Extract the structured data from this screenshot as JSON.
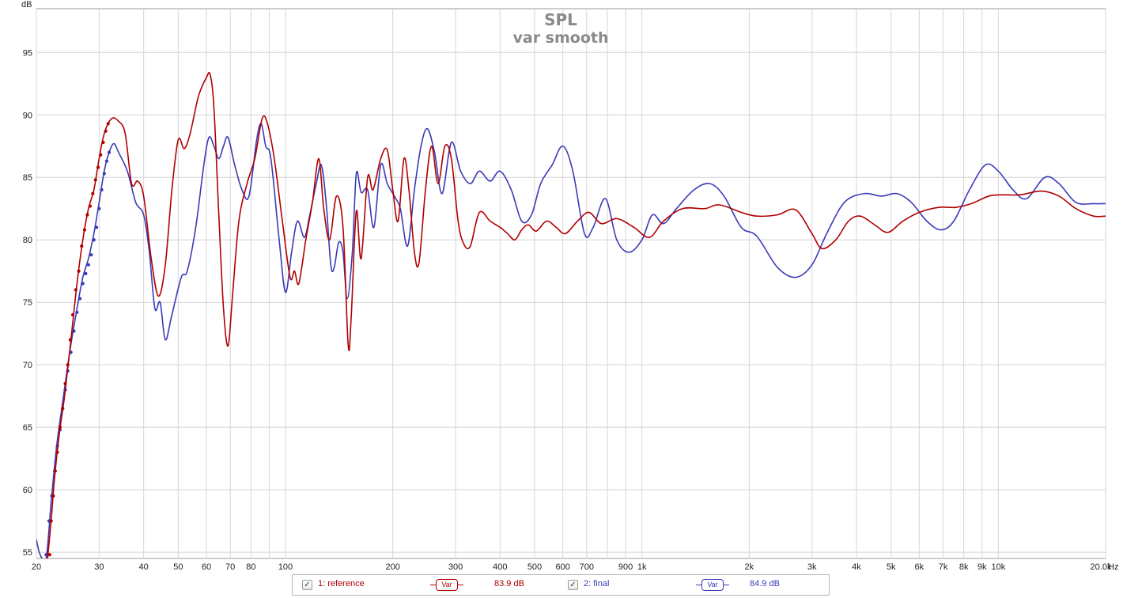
{
  "chart_data": {
    "type": "line",
    "title": "SPL",
    "subtitle": "var smooth",
    "ylabel": "dB",
    "xlabel": "Hz",
    "x_scale": "log",
    "xlim": [
      20,
      20000
    ],
    "ylim": [
      54.5,
      98.5
    ],
    "y_ticks": [
      55,
      60,
      65,
      70,
      75,
      80,
      85,
      90,
      95
    ],
    "x_ticks": [
      {
        "v": 20,
        "label": "20"
      },
      {
        "v": 30,
        "label": "30"
      },
      {
        "v": 40,
        "label": "40"
      },
      {
        "v": 50,
        "label": "50"
      },
      {
        "v": 60,
        "label": "60"
      },
      {
        "v": 70,
        "label": "70"
      },
      {
        "v": 80,
        "label": "80"
      },
      {
        "v": 100,
        "label": "100"
      },
      {
        "v": 200,
        "label": "200"
      },
      {
        "v": 300,
        "label": "300"
      },
      {
        "v": 400,
        "label": "400"
      },
      {
        "v": 500,
        "label": "500"
      },
      {
        "v": 600,
        "label": "600"
      },
      {
        "v": 700,
        "label": "700"
      },
      {
        "v": 900,
        "label": "900"
      },
      {
        "v": 1000,
        "label": "1k"
      },
      {
        "v": 2000,
        "label": "2k"
      },
      {
        "v": 3000,
        "label": "3k"
      },
      {
        "v": 4000,
        "label": "4k"
      },
      {
        "v": 5000,
        "label": "5k"
      },
      {
        "v": 6000,
        "label": "6k"
      },
      {
        "v": 7000,
        "label": "7k"
      },
      {
        "v": 8000,
        "label": "8k"
      },
      {
        "v": 9000,
        "label": "9k"
      },
      {
        "v": 10000,
        "label": "10k"
      },
      {
        "v": 20000,
        "label": "20.0k"
      }
    ],
    "grid": true,
    "series": [
      {
        "name": "1: reference",
        "color": "#b00000",
        "smoothing": "Var",
        "level": "83.9 dB",
        "points": [
          [
            21.5,
            54.5
          ],
          [
            22.0,
            57.5
          ],
          [
            22.5,
            61.0
          ],
          [
            23.2,
            64.5
          ],
          [
            24.0,
            67.5
          ],
          [
            25.0,
            72.0
          ],
          [
            26.0,
            76.5
          ],
          [
            27.0,
            80.0
          ],
          [
            28.0,
            82.5
          ],
          [
            29.0,
            84.0
          ],
          [
            30.0,
            86.5
          ],
          [
            31.0,
            88.5
          ],
          [
            32.5,
            89.7
          ],
          [
            34.0,
            89.5
          ],
          [
            35.5,
            88.5
          ],
          [
            37.0,
            84.5
          ],
          [
            38.5,
            84.7
          ],
          [
            40.0,
            83.5
          ],
          [
            42.0,
            78.5
          ],
          [
            44.0,
            75.5
          ],
          [
            46.0,
            78.0
          ],
          [
            48.0,
            84.0
          ],
          [
            50.0,
            88.0
          ],
          [
            52.0,
            87.3
          ],
          [
            54.0,
            88.5
          ],
          [
            57.0,
            91.5
          ],
          [
            60.0,
            93.0
          ],
          [
            61.5,
            93.2
          ],
          [
            63.0,
            90.5
          ],
          [
            65.0,
            82.0
          ],
          [
            67.0,
            74.5
          ],
          [
            69.0,
            71.5
          ],
          [
            71.0,
            75.5
          ],
          [
            74.0,
            81.5
          ],
          [
            78.0,
            84.5
          ],
          [
            82.0,
            86.5
          ],
          [
            86.0,
            89.7
          ],
          [
            89.0,
            89.3
          ],
          [
            93.0,
            86.5
          ],
          [
            98.0,
            81.5
          ],
          [
            103.0,
            77.0
          ],
          [
            106.0,
            77.5
          ],
          [
            109.0,
            76.5
          ],
          [
            114.0,
            80.0
          ],
          [
            119.0,
            83.0
          ],
          [
            124.0,
            86.5
          ],
          [
            128.0,
            82.5
          ],
          [
            133.0,
            80.0
          ],
          [
            139.0,
            83.5
          ],
          [
            145.0,
            81.0
          ],
          [
            150.0,
            71.5
          ],
          [
            153.0,
            74.0
          ],
          [
            158.0,
            82.3
          ],
          [
            163.0,
            78.5
          ],
          [
            170.0,
            85.0
          ],
          [
            176.0,
            84.0
          ],
          [
            185.0,
            86.5
          ],
          [
            193.0,
            87.2
          ],
          [
            200.0,
            84.0
          ],
          [
            207.0,
            81.5
          ],
          [
            215.0,
            86.5
          ],
          [
            222.0,
            84.0
          ],
          [
            230.0,
            79.0
          ],
          [
            237.0,
            78.2
          ],
          [
            247.0,
            84.0
          ],
          [
            257.0,
            87.5
          ],
          [
            268.0,
            84.5
          ],
          [
            280.0,
            87.5
          ],
          [
            292.0,
            86.5
          ],
          [
            305.0,
            81.5
          ],
          [
            316.0,
            79.7
          ],
          [
            330.0,
            79.5
          ],
          [
            350.0,
            82.2
          ],
          [
            375.0,
            81.5
          ],
          [
            400.0,
            81.0
          ],
          [
            420.0,
            80.5
          ],
          [
            440.0,
            80.0
          ],
          [
            460.0,
            80.8
          ],
          [
            480.0,
            81.2
          ],
          [
            505.0,
            80.7
          ],
          [
            540.0,
            81.5
          ],
          [
            575.0,
            81.0
          ],
          [
            610.0,
            80.5
          ],
          [
            660.0,
            81.5
          ],
          [
            710.0,
            82.2
          ],
          [
            770.0,
            81.3
          ],
          [
            850.0,
            81.7
          ],
          [
            950.0,
            81.0
          ],
          [
            1050.0,
            80.2
          ],
          [
            1150.0,
            81.5
          ],
          [
            1300.0,
            82.5
          ],
          [
            1500.0,
            82.5
          ],
          [
            1650.0,
            82.8
          ],
          [
            1900.0,
            82.2
          ],
          [
            2100.0,
            81.9
          ],
          [
            2400.0,
            82.0
          ],
          [
            2700.0,
            82.4
          ],
          [
            3000.0,
            80.5
          ],
          [
            3200.0,
            79.3
          ],
          [
            3500.0,
            80.0
          ],
          [
            3800.0,
            81.5
          ],
          [
            4100.0,
            81.9
          ],
          [
            4500.0,
            81.2
          ],
          [
            4900.0,
            80.6
          ],
          [
            5400.0,
            81.5
          ],
          [
            6000.0,
            82.2
          ],
          [
            6800.0,
            82.6
          ],
          [
            7600.0,
            82.6
          ],
          [
            8400.0,
            82.9
          ],
          [
            9400.0,
            83.5
          ],
          [
            10200.0,
            83.6
          ],
          [
            11500.0,
            83.6
          ],
          [
            13200.0,
            83.9
          ],
          [
            14800.0,
            83.5
          ],
          [
            16500.0,
            82.5
          ],
          [
            18500.0,
            81.9
          ],
          [
            20000.0,
            81.9
          ]
        ],
        "markers": [
          [
            21.8,
            54.8
          ],
          [
            22.0,
            57.5
          ],
          [
            22.3,
            59.5
          ],
          [
            22.6,
            61.5
          ],
          [
            22.9,
            63.0
          ],
          [
            23.3,
            65.0
          ],
          [
            23.7,
            66.5
          ],
          [
            24.1,
            68.5
          ],
          [
            24.5,
            70.0
          ],
          [
            24.9,
            72.0
          ],
          [
            25.3,
            74.0
          ],
          [
            25.8,
            76.0
          ],
          [
            26.3,
            77.5
          ],
          [
            26.8,
            79.5
          ],
          [
            27.3,
            80.8
          ],
          [
            27.8,
            82.0
          ],
          [
            28.3,
            82.7
          ],
          [
            28.8,
            83.7
          ],
          [
            29.3,
            84.8
          ],
          [
            29.8,
            85.8
          ],
          [
            30.3,
            86.8
          ],
          [
            30.8,
            87.8
          ],
          [
            31.3,
            88.7
          ],
          [
            31.8,
            89.3
          ]
        ]
      },
      {
        "name": "2: final",
        "color": "#3a3ab8",
        "smoothing": "Var",
        "level": "84.9 dB",
        "points": [
          [
            20.0,
            56.0
          ],
          [
            20.5,
            54.8
          ],
          [
            21.3,
            54.5
          ],
          [
            22.0,
            59.0
          ],
          [
            22.8,
            63.5
          ],
          [
            23.7,
            67.0
          ],
          [
            24.8,
            71.0
          ],
          [
            26.0,
            74.5
          ],
          [
            27.0,
            77.0
          ],
          [
            28.0,
            78.5
          ],
          [
            29.0,
            80.5
          ],
          [
            30.0,
            83.0
          ],
          [
            31.0,
            85.5
          ],
          [
            32.0,
            87.0
          ],
          [
            33.0,
            87.7
          ],
          [
            34.0,
            87.0
          ],
          [
            36.0,
            85.5
          ],
          [
            38.0,
            83.0
          ],
          [
            40.0,
            82.0
          ],
          [
            41.5,
            79.0
          ],
          [
            43.0,
            74.5
          ],
          [
            44.5,
            75.0
          ],
          [
            46.0,
            72.0
          ],
          [
            48.0,
            74.0
          ],
          [
            51.0,
            77.0
          ],
          [
            53.0,
            77.5
          ],
          [
            56.0,
            81.0
          ],
          [
            59.0,
            86.0
          ],
          [
            61.0,
            88.2
          ],
          [
            63.0,
            87.5
          ],
          [
            65.0,
            86.5
          ],
          [
            67.0,
            87.5
          ],
          [
            69.0,
            88.2
          ],
          [
            72.0,
            86.0
          ],
          [
            75.5,
            84.0
          ],
          [
            79.0,
            83.5
          ],
          [
            83.0,
            88.0
          ],
          [
            85.5,
            89.3
          ],
          [
            88.0,
            87.5
          ],
          [
            91.0,
            86.5
          ],
          [
            96.0,
            80.0
          ],
          [
            100.0,
            75.8
          ],
          [
            104.0,
            79.0
          ],
          [
            108.0,
            81.5
          ],
          [
            113.0,
            80.2
          ],
          [
            117.0,
            82.0
          ],
          [
            122.0,
            84.5
          ],
          [
            126.0,
            86.0
          ],
          [
            130.0,
            83.0
          ],
          [
            134.0,
            78.0
          ],
          [
            137.0,
            77.8
          ],
          [
            141.0,
            79.8
          ],
          [
            145.0,
            79.0
          ],
          [
            149.0,
            75.3
          ],
          [
            154.0,
            79.0
          ],
          [
            158.0,
            85.3
          ],
          [
            163.0,
            83.8
          ],
          [
            170.0,
            84.0
          ],
          [
            177.0,
            81.0
          ],
          [
            185.0,
            86.0
          ],
          [
            193.0,
            84.5
          ],
          [
            202.0,
            83.5
          ],
          [
            210.0,
            82.5
          ],
          [
            220.0,
            79.5
          ],
          [
            230.0,
            84.0
          ],
          [
            240.0,
            87.5
          ],
          [
            250.0,
            88.9
          ],
          [
            262.0,
            87.0
          ],
          [
            275.0,
            83.7
          ],
          [
            292.0,
            87.8
          ],
          [
            310.0,
            85.5
          ],
          [
            330.0,
            84.5
          ],
          [
            350.0,
            85.5
          ],
          [
            375.0,
            84.7
          ],
          [
            400.0,
            85.5
          ],
          [
            430.0,
            84.0
          ],
          [
            460.0,
            81.5
          ],
          [
            490.0,
            82.0
          ],
          [
            520.0,
            84.5
          ],
          [
            560.0,
            86.0
          ],
          [
            600.0,
            87.5
          ],
          [
            640.0,
            85.5
          ],
          [
            690.0,
            80.5
          ],
          [
            730.0,
            81.0
          ],
          [
            790.0,
            83.3
          ],
          [
            850.0,
            80.0
          ],
          [
            920.0,
            79.0
          ],
          [
            1000.0,
            80.0
          ],
          [
            1070.0,
            82.0
          ],
          [
            1150.0,
            81.3
          ],
          [
            1250.0,
            82.5
          ],
          [
            1400.0,
            84.0
          ],
          [
            1550.0,
            84.5
          ],
          [
            1700.0,
            83.5
          ],
          [
            1900.0,
            81.0
          ],
          [
            2100.0,
            80.3
          ],
          [
            2400.0,
            77.8
          ],
          [
            2700.0,
            77.0
          ],
          [
            3000.0,
            78.0
          ],
          [
            3300.0,
            80.5
          ],
          [
            3700.0,
            83.0
          ],
          [
            4200.0,
            83.7
          ],
          [
            4700.0,
            83.5
          ],
          [
            5200.0,
            83.7
          ],
          [
            5700.0,
            83.0
          ],
          [
            6300.0,
            81.5
          ],
          [
            6900.0,
            80.8
          ],
          [
            7500.0,
            81.5
          ],
          [
            8300.0,
            84.0
          ],
          [
            9200.0,
            86.0
          ],
          [
            10000.0,
            85.5
          ],
          [
            11000.0,
            84.0
          ],
          [
            12000.0,
            83.3
          ],
          [
            13500.0,
            85.0
          ],
          [
            14800.0,
            84.5
          ],
          [
            16500.0,
            83.0
          ],
          [
            18500.0,
            82.9
          ],
          [
            20000.0,
            82.9
          ]
        ],
        "markers": [
          [
            21.3,
            54.8
          ],
          [
            21.7,
            57.5
          ],
          [
            22.1,
            59.5
          ],
          [
            22.5,
            61.5
          ],
          [
            22.9,
            63.5
          ],
          [
            23.3,
            64.8
          ],
          [
            23.7,
            66.5
          ],
          [
            24.1,
            68.0
          ],
          [
            24.5,
            69.5
          ],
          [
            25.0,
            71.0
          ],
          [
            25.5,
            72.7
          ],
          [
            26.0,
            74.2
          ],
          [
            26.5,
            75.3
          ],
          [
            27.0,
            76.5
          ],
          [
            27.5,
            77.3
          ],
          [
            28.0,
            78.0
          ],
          [
            28.5,
            78.8
          ],
          [
            29.0,
            80.0
          ],
          [
            29.5,
            81.0
          ],
          [
            30.0,
            82.5
          ],
          [
            30.5,
            84.0
          ],
          [
            31.0,
            85.3
          ],
          [
            31.5,
            86.3
          ],
          [
            32.0,
            87.0
          ]
        ]
      }
    ]
  },
  "legend": {
    "items": [
      {
        "label": "1: reference",
        "smoothing": "Var",
        "level": "83.9 dB",
        "color": "#b00000"
      },
      {
        "label": "2: final",
        "smoothing": "Var",
        "level": "84.9 dB",
        "color": "#3a3ab8"
      }
    ],
    "checkmark": "✓"
  }
}
